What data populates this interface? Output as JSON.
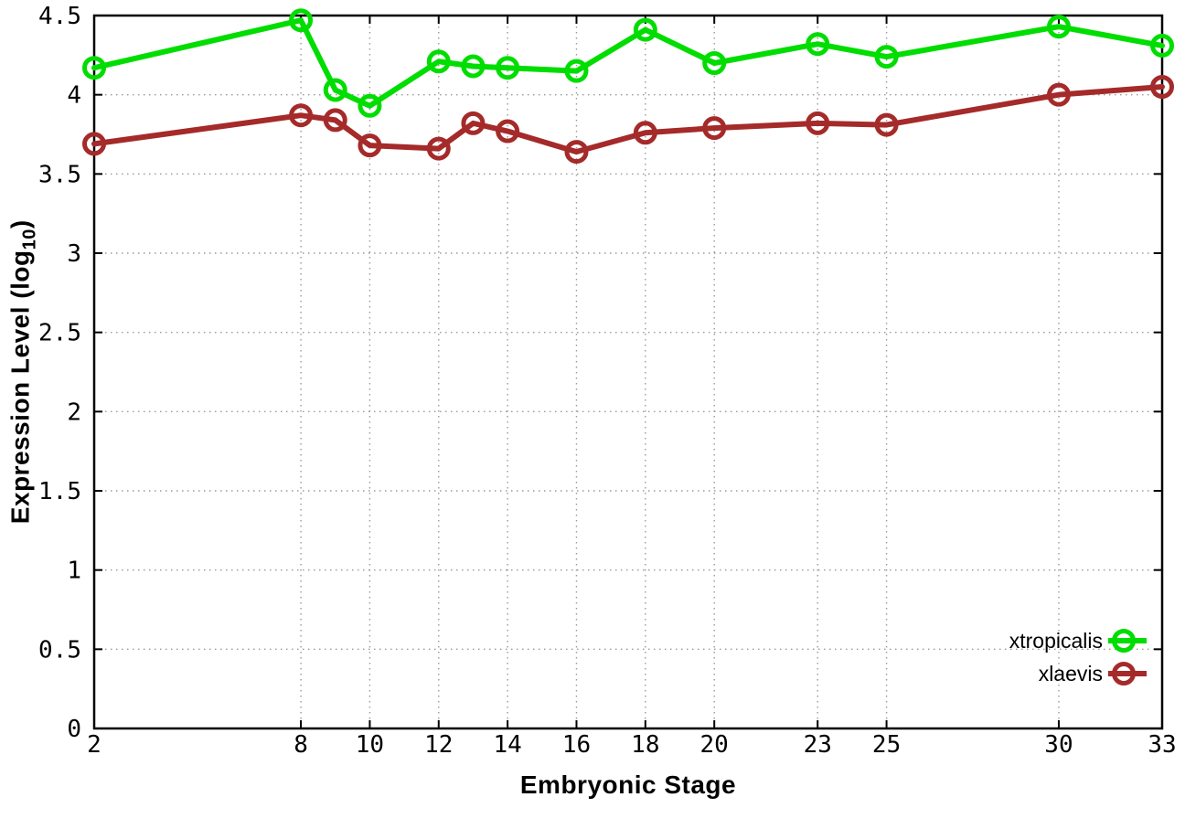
{
  "chart_data": {
    "type": "line",
    "title": "",
    "xlabel": "Embryonic Stage",
    "ylabel": "Expression Level (log10)",
    "ylabel_parts": {
      "prefix": "Expression Level (log",
      "subscript": "10",
      "suffix": ")"
    },
    "x": [
      2,
      8,
      9,
      10,
      12,
      13,
      14,
      16,
      18,
      20,
      23,
      25,
      30,
      33
    ],
    "series": [
      {
        "name": "xtropicalis",
        "color": "#00dd00",
        "values": [
          4.17,
          4.47,
          4.03,
          3.93,
          4.21,
          4.18,
          4.17,
          4.15,
          4.41,
          4.2,
          4.32,
          4.24,
          4.43,
          4.31
        ]
      },
      {
        "name": "xlaevis",
        "color": "#a52a2a",
        "values": [
          3.69,
          3.87,
          3.84,
          3.68,
          3.66,
          3.82,
          3.77,
          3.64,
          3.76,
          3.79,
          3.82,
          3.81,
          4.0,
          4.05
        ]
      }
    ],
    "x_ticks": [
      2,
      8,
      10,
      12,
      14,
      16,
      18,
      20,
      23,
      25,
      30,
      33
    ],
    "y_ticks": [
      "0",
      "0.5",
      "1",
      "1.5",
      "2",
      "2.5",
      "3",
      "3.5",
      "4",
      "4.5"
    ],
    "xlim": [
      2,
      33
    ],
    "ylim": [
      0,
      4.5
    ],
    "grid": true,
    "legend_position": "inside-bottom-right",
    "axis_color": "#000000",
    "grid_color": "#9a9a9a",
    "background": "#ffffff"
  }
}
